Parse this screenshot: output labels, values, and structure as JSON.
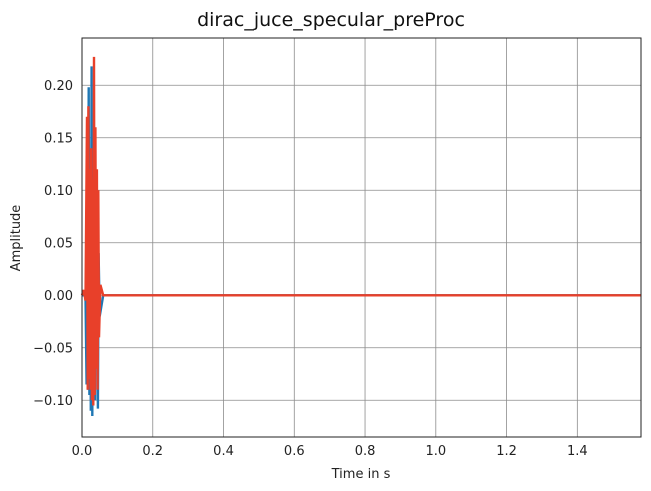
{
  "chart_data": {
    "type": "line",
    "title": "dirac_juce_specular_preProc",
    "xlabel": "Time in s",
    "ylabel": "Amplitude",
    "xlim": [
      0,
      1.58
    ],
    "ylim": [
      -0.135,
      0.245
    ],
    "xticks": [
      0.0,
      0.2,
      0.4,
      0.6,
      0.8,
      1.0,
      1.2,
      1.4
    ],
    "xtick_labels": [
      "0.0",
      "0.2",
      "0.4",
      "0.6",
      "0.8",
      "1.0",
      "1.2",
      "1.4"
    ],
    "yticks": [
      -0.1,
      -0.05,
      0.0,
      0.05,
      0.1,
      0.15,
      0.2
    ],
    "ytick_labels": [
      "−0.10",
      "−0.05",
      "0.00",
      "0.05",
      "0.10",
      "0.15",
      "0.20"
    ],
    "grid": true,
    "series": [
      {
        "color": "#1f77b4",
        "x": [
          0.0,
          0.005,
          0.01,
          0.013,
          0.015,
          0.017,
          0.019,
          0.021,
          0.023,
          0.025,
          0.027,
          0.029,
          0.031,
          0.033,
          0.035,
          0.037,
          0.039,
          0.041,
          0.043,
          0.045,
          0.047,
          0.05,
          0.06,
          0.1,
          1.58
        ],
        "y": [
          0.0,
          0.0,
          0.0,
          -0.085,
          0.16,
          -0.09,
          0.198,
          -0.095,
          0.12,
          -0.11,
          0.218,
          -0.115,
          0.15,
          -0.06,
          0.11,
          -0.1,
          0.09,
          -0.05,
          0.08,
          -0.108,
          0.04,
          -0.02,
          0.0,
          0.0,
          0.0
        ]
      },
      {
        "color": "#e8402a",
        "x": [
          0.0,
          0.005,
          0.01,
          0.014,
          0.016,
          0.018,
          0.02,
          0.022,
          0.024,
          0.026,
          0.028,
          0.03,
          0.032,
          0.034,
          0.036,
          0.038,
          0.04,
          0.042,
          0.044,
          0.046,
          0.048,
          0.052,
          0.06,
          0.1,
          1.58
        ],
        "y": [
          0.0,
          0.005,
          -0.005,
          0.17,
          -0.09,
          0.18,
          -0.08,
          0.12,
          -0.09,
          0.14,
          -0.1,
          0.11,
          -0.105,
          0.227,
          -0.095,
          0.16,
          -0.07,
          0.12,
          -0.09,
          0.1,
          -0.04,
          0.01,
          0.0,
          0.0,
          0.0
        ]
      }
    ]
  }
}
